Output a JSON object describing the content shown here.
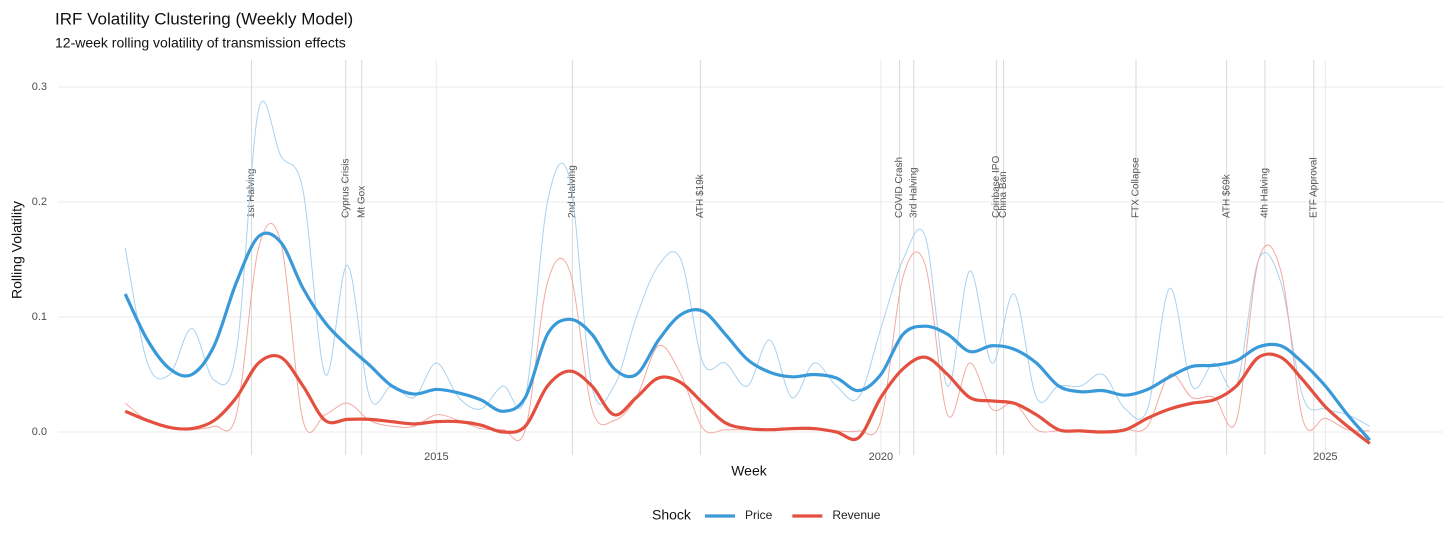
{
  "chart_data": {
    "type": "line",
    "title": "IRF Volatility Clustering (Weekly Model)",
    "subtitle": "12-week rolling volatility of transmission effects",
    "x_label": "Week",
    "y_label": "Rolling Volatility",
    "legend_title": "Shock",
    "x": [
      2011.5,
      2011.75,
      2012,
      2012.25,
      2012.5,
      2012.75,
      2013,
      2013.25,
      2013.5,
      2013.75,
      2014,
      2014.25,
      2014.5,
      2014.75,
      2015,
      2015.25,
      2015.5,
      2015.75,
      2016,
      2016.25,
      2016.5,
      2016.75,
      2017,
      2017.25,
      2017.5,
      2017.75,
      2018,
      2018.25,
      2018.5,
      2018.75,
      2019,
      2019.25,
      2019.5,
      2019.75,
      2020,
      2020.25,
      2020.5,
      2020.75,
      2021,
      2021.25,
      2021.5,
      2021.75,
      2022,
      2022.25,
      2022.5,
      2022.75,
      2023,
      2023.25,
      2023.5,
      2023.75,
      2024,
      2024.25,
      2024.5,
      2024.75,
      2025,
      2025.25,
      2025.5
    ],
    "series": [
      {
        "name": "Price",
        "color": "#3a9ad9",
        "raw_color": "#a9d2ef",
        "values": [
          0.12,
          0.08,
          0.055,
          0.05,
          0.075,
          0.13,
          0.17,
          0.165,
          0.125,
          0.095,
          0.075,
          0.058,
          0.04,
          0.033,
          0.037,
          0.034,
          0.028,
          0.018,
          0.03,
          0.085,
          0.098,
          0.085,
          0.055,
          0.05,
          0.08,
          0.102,
          0.105,
          0.085,
          0.063,
          0.052,
          0.048,
          0.05,
          0.047,
          0.036,
          0.05,
          0.085,
          0.092,
          0.085,
          0.07,
          0.075,
          0.072,
          0.06,
          0.04,
          0.035,
          0.036,
          0.032,
          0.037,
          0.048,
          0.057,
          0.058,
          0.062,
          0.074,
          0.075,
          0.06,
          0.04,
          0.015,
          -0.007
        ],
        "raw_values": [
          0.16,
          0.06,
          0.05,
          0.09,
          0.045,
          0.07,
          0.28,
          0.24,
          0.21,
          0.05,
          0.145,
          0.03,
          0.04,
          0.03,
          0.06,
          0.03,
          0.02,
          0.04,
          0.03,
          0.2,
          0.22,
          0.04,
          0.04,
          0.1,
          0.145,
          0.15,
          0.06,
          0.06,
          0.04,
          0.08,
          0.03,
          0.06,
          0.04,
          0.03,
          0.09,
          0.15,
          0.17,
          0.04,
          0.14,
          0.06,
          0.12,
          0.03,
          0.04,
          0.04,
          0.05,
          0.02,
          0.02,
          0.125,
          0.04,
          0.06,
          0.04,
          0.15,
          0.13,
          0.03,
          0.02,
          0.015,
          0.005
        ]
      },
      {
        "name": "Revenue",
        "color": "#e4503f",
        "raw_color": "#f2aaa2",
        "values": [
          0.018,
          0.01,
          0.004,
          0.003,
          0.01,
          0.03,
          0.06,
          0.065,
          0.04,
          0.01,
          0.011,
          0.011,
          0.009,
          0.007,
          0.009,
          0.009,
          0.006,
          0.0,
          0.005,
          0.04,
          0.053,
          0.04,
          0.015,
          0.03,
          0.047,
          0.043,
          0.025,
          0.008,
          0.003,
          0.002,
          0.003,
          0.003,
          0.0,
          -0.005,
          0.03,
          0.055,
          0.065,
          0.05,
          0.03,
          0.027,
          0.025,
          0.015,
          0.002,
          0.001,
          0.0,
          0.002,
          0.012,
          0.02,
          0.025,
          0.028,
          0.04,
          0.065,
          0.065,
          0.045,
          0.022,
          0.005,
          -0.01
        ],
        "raw_values": [
          0.025,
          0.01,
          0.003,
          0.002,
          0.005,
          0.015,
          0.16,
          0.165,
          0.01,
          0.015,
          0.025,
          0.01,
          0.005,
          0.005,
          0.015,
          0.01,
          0.003,
          0.002,
          0.002,
          0.13,
          0.14,
          0.02,
          0.01,
          0.03,
          0.075,
          0.05,
          0.003,
          0.002,
          0.002,
          0.002,
          0.002,
          0.002,
          0.001,
          0.001,
          0.01,
          0.135,
          0.145,
          0.015,
          0.06,
          0.02,
          0.025,
          0.002,
          0.001,
          0.001,
          0.001,
          0.002,
          0.005,
          0.05,
          0.03,
          0.03,
          0.01,
          0.15,
          0.14,
          0.01,
          0.012,
          0.002,
          0.001
        ]
      }
    ],
    "events": [
      {
        "label": "1st Halving",
        "x": 2012.92
      },
      {
        "label": "Cyprus Crisis",
        "x": 2013.98
      },
      {
        "label": "Mt Gox",
        "x": 2014.16
      },
      {
        "label": "2nd Halving",
        "x": 2016.53
      },
      {
        "label": "ATH $19k",
        "x": 2017.97
      },
      {
        "label": "COVID Crash",
        "x": 2020.21
      },
      {
        "label": "3rd Halving",
        "x": 2020.37
      },
      {
        "label": "Coinbase IPO",
        "x": 2021.3
      },
      {
        "label": "China Ban",
        "x": 2021.38
      },
      {
        "label": "FTX Collapse",
        "x": 2022.87
      },
      {
        "label": "ATH $69k",
        "x": 2023.89
      },
      {
        "label": "4th Halving",
        "x": 2024.32
      },
      {
        "label": "ETF Approval",
        "x": 2024.87
      }
    ],
    "xlim": [
      2010.8,
      2026.2
    ],
    "xticks": [
      2015,
      2020,
      2025
    ],
    "ylim": [
      -0.02,
      0.32
    ],
    "yticks": [
      {
        "value": 0,
        "label": "0.0"
      },
      0.1,
      0.2,
      0.3
    ],
    "grid": true,
    "legend_position": "bottom"
  }
}
